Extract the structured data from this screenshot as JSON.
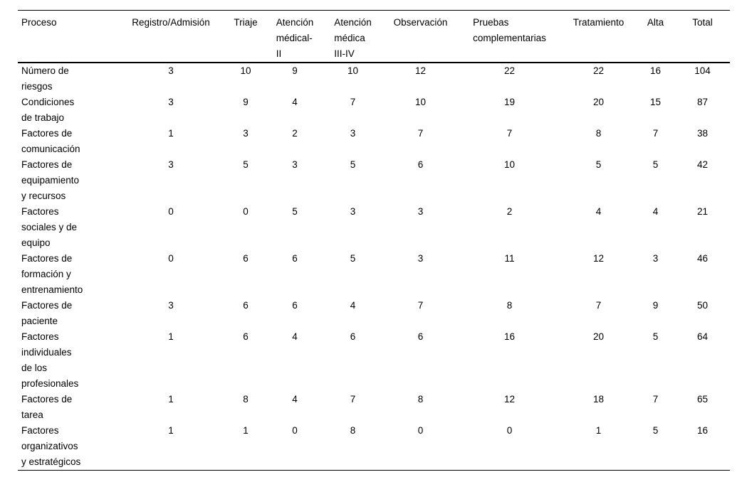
{
  "chart_data": {
    "type": "table",
    "title": "",
    "columns": [
      "Proceso",
      "Registro/Admisión",
      "Triaje",
      "Atención médical-II",
      "Atención médica III-IV",
      "Observación",
      "Pruebas complementarias",
      "Tratamiento",
      "Alta",
      "Total"
    ],
    "rows": [
      {
        "label": "Número de riesgos",
        "values": [
          3,
          10,
          9,
          10,
          12,
          22,
          22,
          16,
          104
        ]
      },
      {
        "label": "Condiciones de trabajo",
        "values": [
          3,
          9,
          4,
          7,
          10,
          19,
          20,
          15,
          87
        ]
      },
      {
        "label": "Factores de comunicación",
        "values": [
          1,
          3,
          2,
          3,
          7,
          7,
          8,
          7,
          38
        ]
      },
      {
        "label": "Factores de equipamiento y recursos",
        "values": [
          3,
          5,
          3,
          5,
          6,
          10,
          5,
          5,
          42
        ]
      },
      {
        "label": "Factores sociales y de equipo",
        "values": [
          0,
          0,
          5,
          3,
          3,
          2,
          4,
          4,
          21
        ]
      },
      {
        "label": "Factores de formación y entrenamiento",
        "values": [
          0,
          6,
          6,
          5,
          3,
          11,
          12,
          3,
          46
        ]
      },
      {
        "label": "Factores de paciente",
        "values": [
          3,
          6,
          6,
          4,
          7,
          8,
          7,
          9,
          50
        ]
      },
      {
        "label": "Factores individuales de los profesionales",
        "values": [
          1,
          6,
          4,
          6,
          6,
          16,
          20,
          5,
          64
        ]
      },
      {
        "label": "Factores de tarea",
        "values": [
          1,
          8,
          4,
          7,
          8,
          12,
          18,
          7,
          65
        ]
      },
      {
        "label": "Factores organizativos y estratégicos",
        "values": [
          1,
          1,
          0,
          8,
          0,
          0,
          1,
          5,
          16
        ]
      }
    ]
  },
  "display": {
    "column_labels": [
      "Proceso",
      "Registro/Admisión",
      "Triaje",
      "Atención\nmédical-\nII",
      "Atención\nmédica\nIII-IV",
      "Observación",
      "Pruebas\ncomplementarias",
      "Tratamiento",
      "Alta",
      "Total"
    ],
    "row_labels": [
      "Número de\nriesgos",
      "Condiciones\nde trabajo",
      "Factores de\ncomunicación",
      "Factores de\nequipamiento\ny recursos",
      "Factores\nsociales y de\nequipo",
      "Factores de\nformación y\nentrenamiento",
      "Factores de\npaciente",
      "Factores\nindividuales\nde los\nprofesionales",
      "Factores de\ntarea",
      "Factores\norganizativos\ny estratégicos"
    ]
  }
}
